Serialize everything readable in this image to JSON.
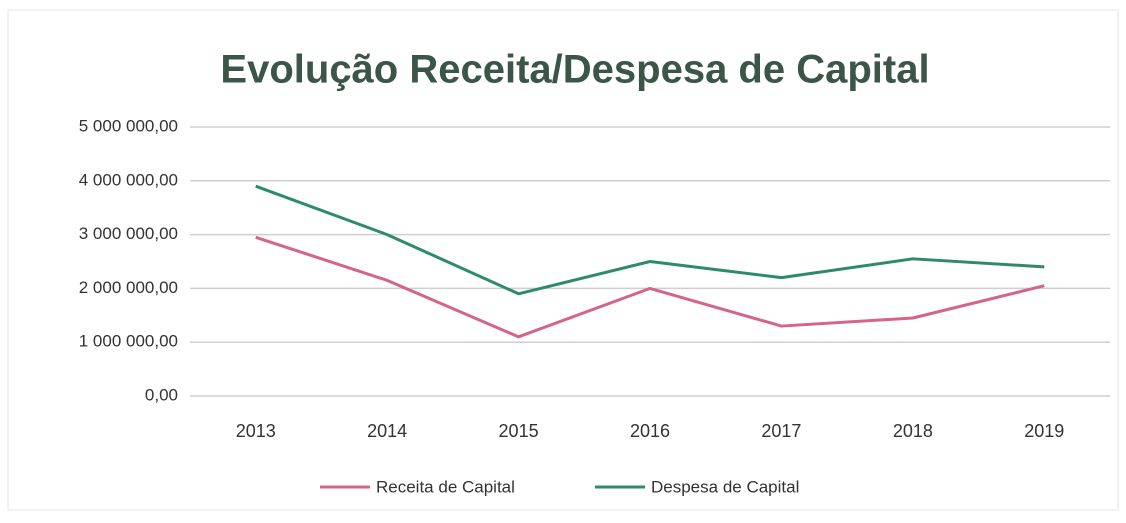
{
  "chart_data": {
    "type": "line",
    "title": "Evolução Receita/Despesa de Capital",
    "categories": [
      "2013",
      "2014",
      "2015",
      "2016",
      "2017",
      "2018",
      "2019"
    ],
    "series": [
      {
        "name": "Receita de Capital",
        "color": "#d4648a",
        "values": [
          2950000,
          2150000,
          1100000,
          2000000,
          1300000,
          1450000,
          2050000
        ]
      },
      {
        "name": "Despesa de Capital",
        "color": "#2e8b6a",
        "values": [
          3900000,
          3000000,
          1900000,
          2500000,
          2200000,
          2550000,
          2400000
        ]
      }
    ],
    "ylim": [
      0,
      5000000
    ],
    "yticks": [
      {
        "value": 0,
        "label": "0,00"
      },
      {
        "value": 1000000,
        "label": "1 000 000,00"
      },
      {
        "value": 2000000,
        "label": "2 000 000,00"
      },
      {
        "value": 3000000,
        "label": "3 000 000,00"
      },
      {
        "value": 4000000,
        "label": "4 000 000,00"
      },
      {
        "value": 5000000,
        "label": "5 000 000,00"
      }
    ],
    "grid": true,
    "legend": "bottom"
  }
}
